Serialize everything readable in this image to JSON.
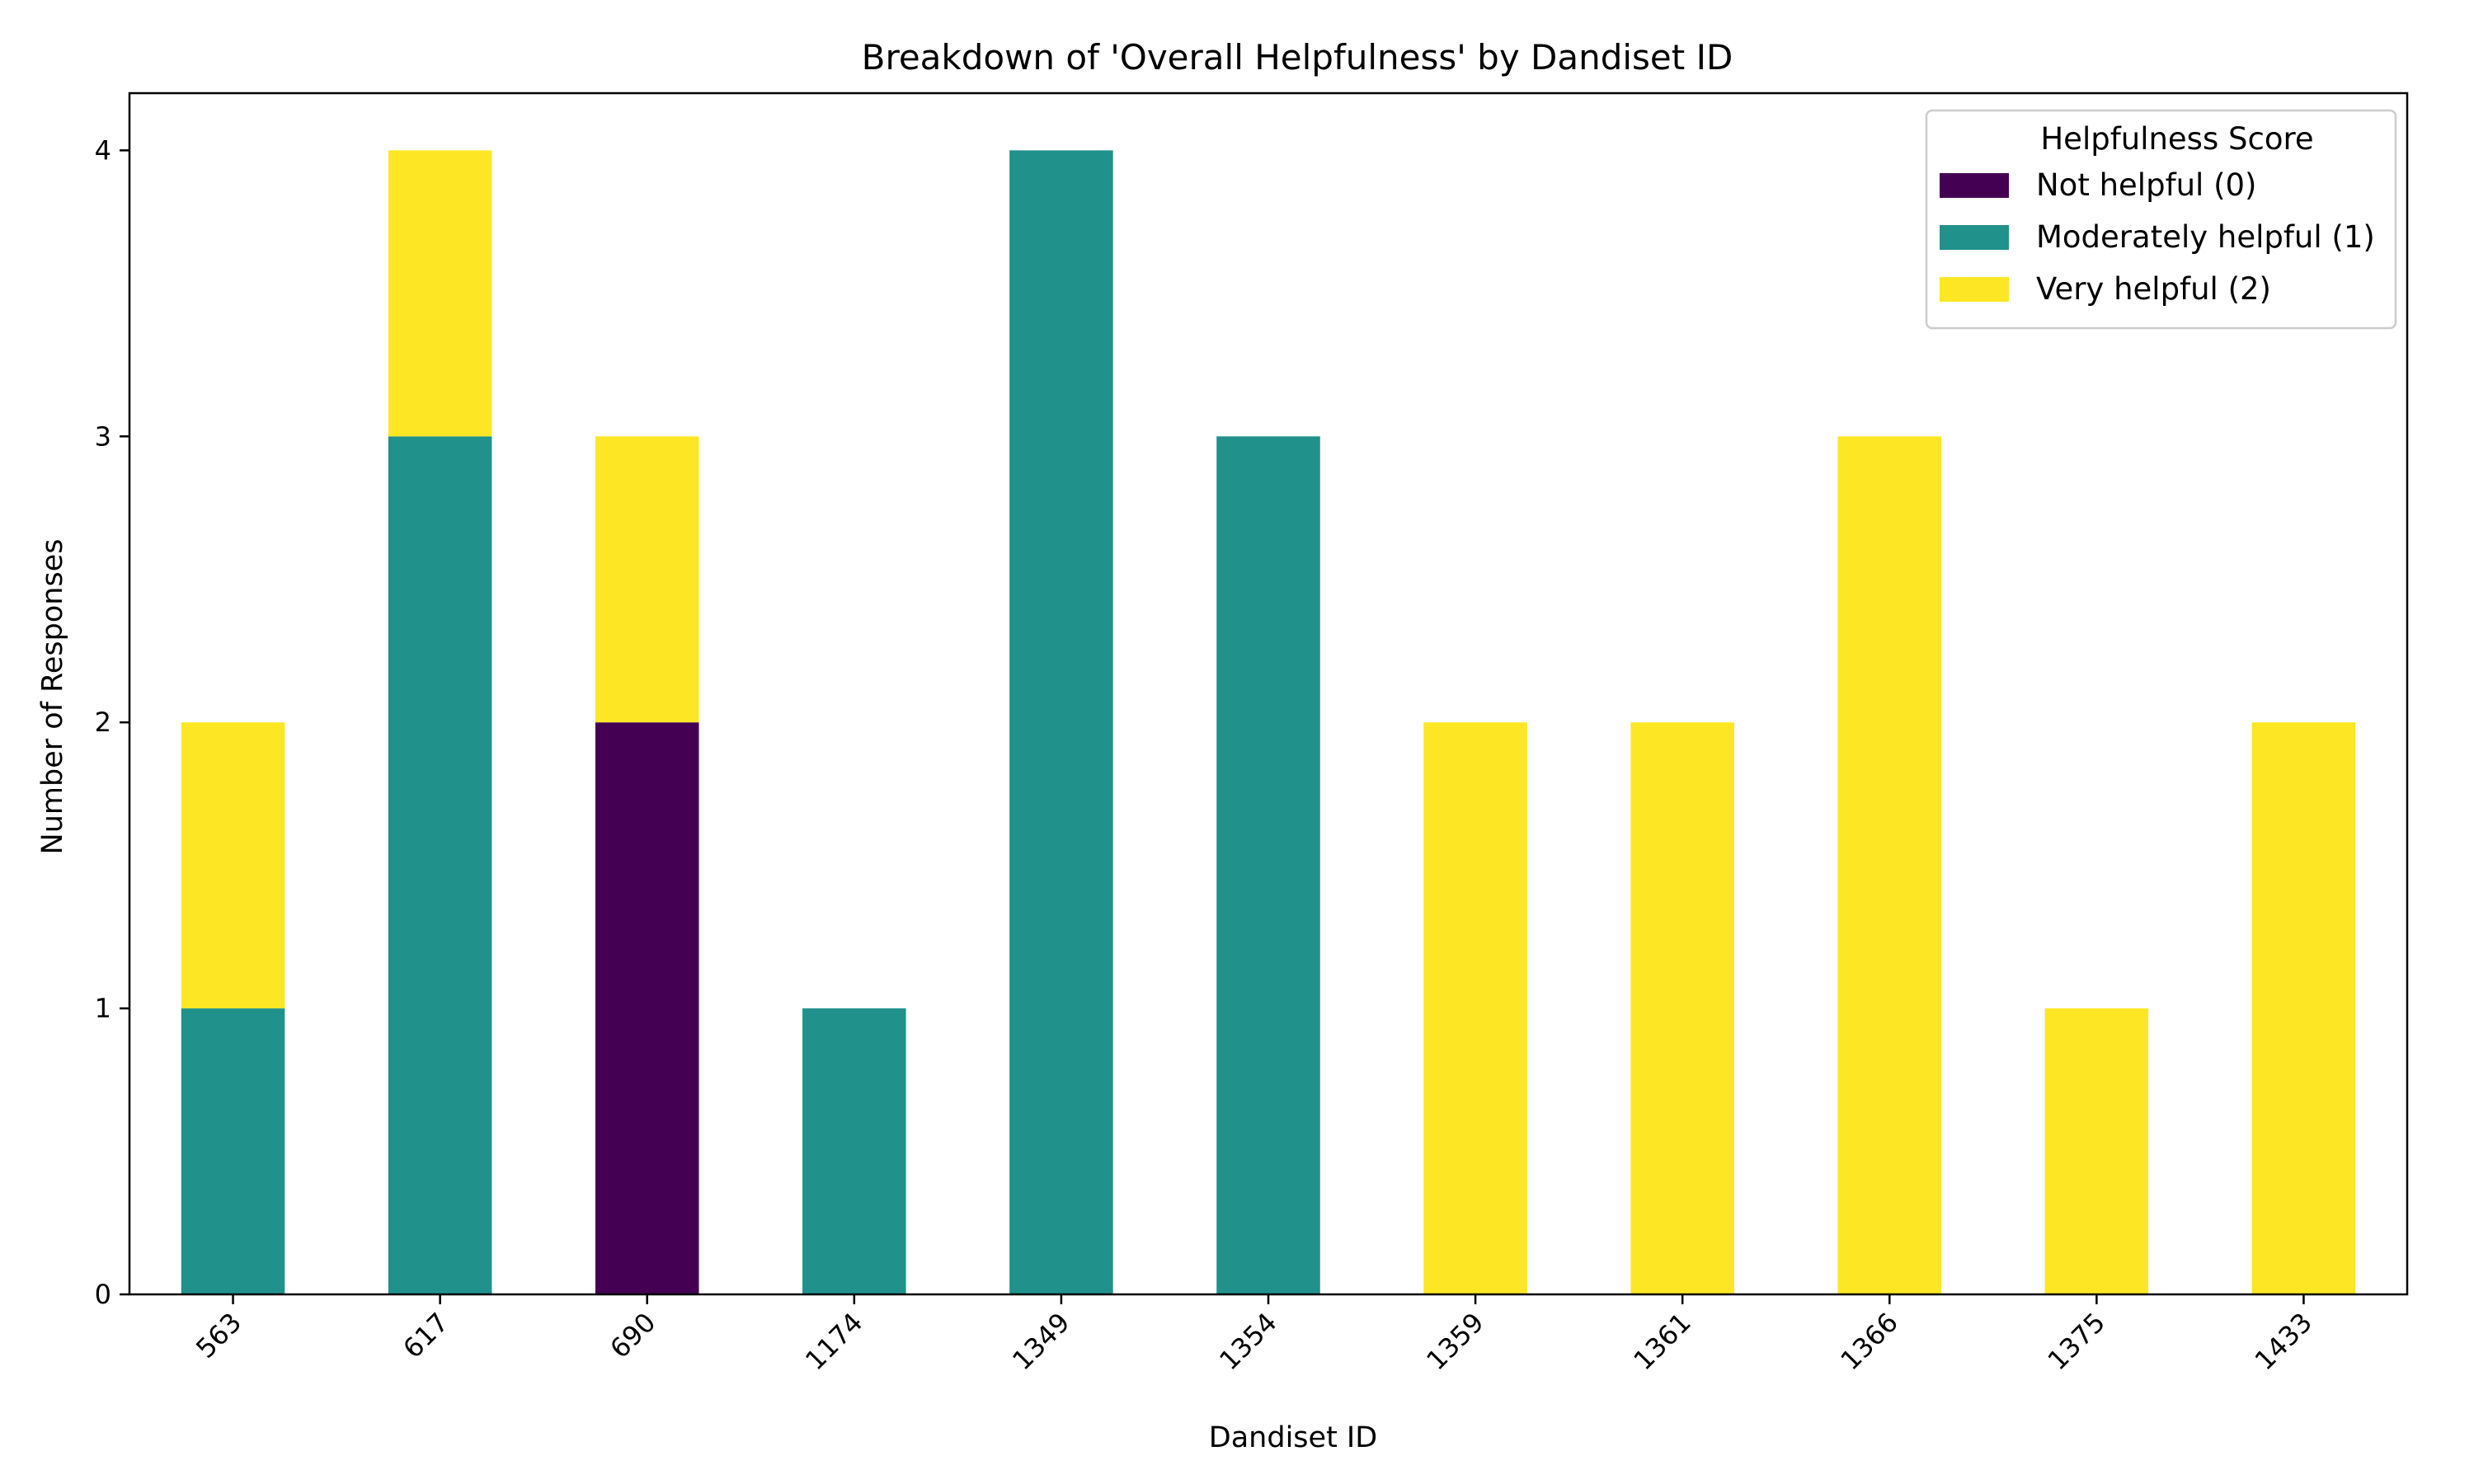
{
  "chart_data": {
    "type": "bar",
    "stacked": true,
    "title": "Breakdown of 'Overall Helpfulness' by Dandiset ID",
    "xlabel": "Dandiset ID",
    "ylabel": "Number of Responses",
    "categories": [
      "563",
      "617",
      "690",
      "1174",
      "1349",
      "1354",
      "1359",
      "1361",
      "1366",
      "1375",
      "1433"
    ],
    "ylim": [
      0,
      4.2
    ],
    "yticks": [
      0,
      1,
      2,
      3,
      4
    ],
    "grid": false,
    "legend": {
      "title": "Helpfulness Score",
      "placement": "top-right"
    },
    "series": [
      {
        "name": "Not helpful (0)",
        "color": "#440154",
        "values": [
          0,
          0,
          2,
          0,
          0,
          0,
          0,
          0,
          0,
          0,
          0
        ]
      },
      {
        "name": "Moderately helpful (1)",
        "color": "#21918c",
        "values": [
          1,
          3,
          0,
          1,
          4,
          3,
          0,
          0,
          0,
          0,
          0
        ]
      },
      {
        "name": "Very helpful (2)",
        "color": "#fde725",
        "values": [
          1,
          1,
          1,
          0,
          0,
          0,
          2,
          2,
          3,
          1,
          2
        ]
      }
    ]
  }
}
